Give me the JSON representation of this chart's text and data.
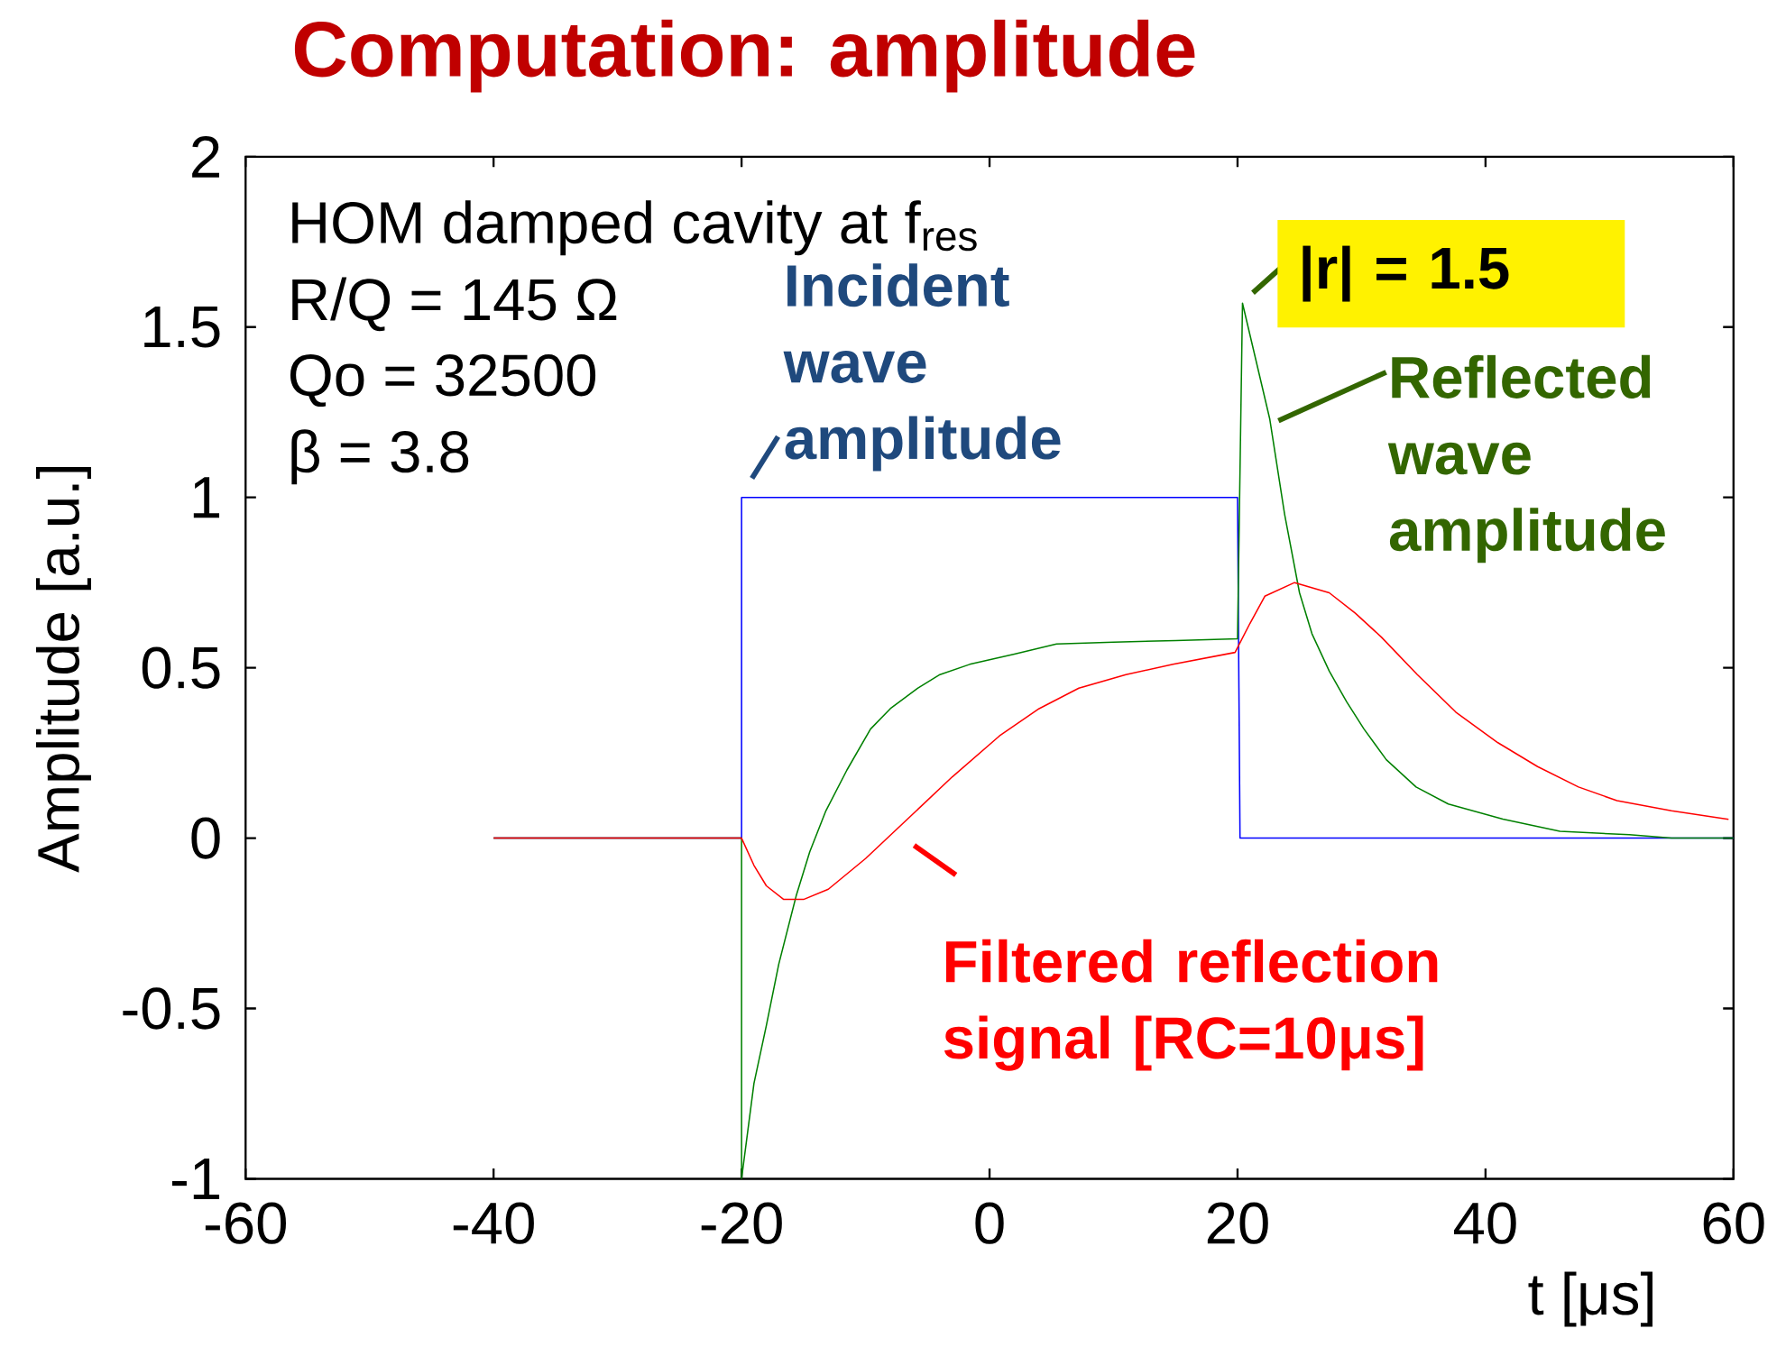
{
  "chart_data": {
    "type": "line",
    "title": "Computation: amplitude",
    "xlabel": "t [μs]",
    "ylabel": "Amplitude [a.u.]",
    "xlim": [
      -60,
      60
    ],
    "ylim": [
      -1,
      2
    ],
    "xticks": [
      -60,
      -40,
      -20,
      0,
      20,
      40,
      60
    ],
    "yticks": [
      -1,
      -0.5,
      0,
      0.5,
      1,
      1.5,
      2
    ],
    "series": [
      {
        "color": "#0000ff",
        "x": [
          -40,
          -20,
          -20,
          20,
          20.2,
          60
        ],
        "values": [
          0,
          0,
          1,
          1,
          0,
          0
        ]
      },
      {
        "color": "#008000",
        "x": [
          -40,
          -20,
          -20,
          -19,
          -18,
          -17,
          -15.6,
          -14.5,
          -13.2,
          -11.5,
          -9.6,
          -8,
          -5.8,
          -4,
          -1.6,
          2,
          5.4,
          10,
          15,
          20,
          20.4,
          21.5,
          22.6,
          23.8,
          25,
          26,
          27.4,
          28.8,
          30.2,
          32,
          34.4,
          37,
          41.4,
          46,
          51.6,
          55,
          60
        ],
        "values": [
          0,
          0,
          -1,
          -0.72,
          -0.55,
          -0.37,
          -0.17,
          -0.04,
          0.08,
          0.2,
          0.32,
          0.38,
          0.44,
          0.48,
          0.51,
          0.54,
          0.57,
          0.575,
          0.58,
          0.585,
          1.57,
          1.4,
          1.23,
          0.95,
          0.72,
          0.6,
          0.49,
          0.4,
          0.32,
          0.23,
          0.15,
          0.1,
          0.056,
          0.02,
          0.01,
          0,
          0
        ]
      },
      {
        "color": "#ff0000",
        "x": [
          -40,
          -20,
          -19,
          -18,
          -16.6,
          -15,
          -13,
          -10,
          -6.5,
          -3,
          0.8,
          4,
          7.2,
          11,
          14.8,
          19.8,
          21,
          22.2,
          24.6,
          27.4,
          29.5,
          31.6,
          34.5,
          37.6,
          41,
          44.2,
          47.5,
          50.6,
          55,
          59.6
        ],
        "values": [
          0,
          0,
          -0.08,
          -0.14,
          -0.18,
          -0.18,
          -0.15,
          -0.06,
          0.06,
          0.18,
          0.3,
          0.38,
          0.44,
          0.48,
          0.51,
          0.545,
          0.63,
          0.71,
          0.75,
          0.72,
          0.66,
          0.59,
          0.48,
          0.37,
          0.28,
          0.21,
          0.15,
          0.11,
          0.08,
          0.055
        ]
      }
    ],
    "annotations": [
      "HOM damped cavity at f$_{res}$",
      "R/Q = 145 Ω",
      "Qo = 32500",
      "β = 3.8",
      {
        "text": "Incident wave amplitude",
        "x": -20,
        "y": 1
      },
      {
        "text": "|r| = 1.5",
        "x": 20.4,
        "y": 1.57
      },
      {
        "text": "Reflected wave amplitude",
        "x": 22.6,
        "y": 1.23
      },
      {
        "text": "Filtered reflection signal [RC=10μs]",
        "x": -6.5,
        "y": 0.06
      }
    ]
  }
}
